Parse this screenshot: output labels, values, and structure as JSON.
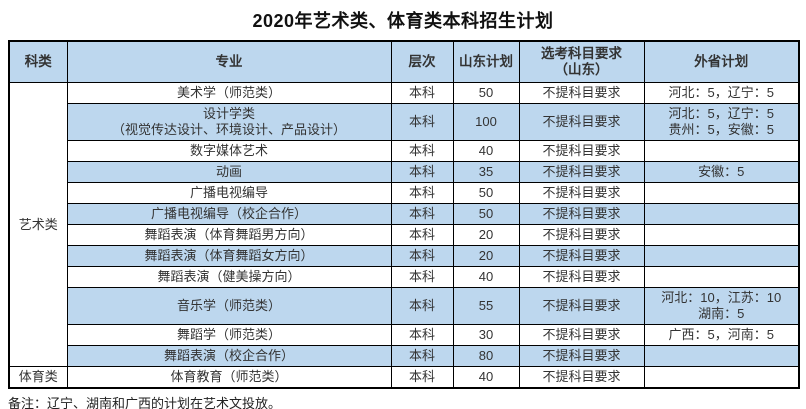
{
  "title": "2020年艺术类、体育类本科招生计划",
  "note": "备注：辽宁、湖南和广西的计划在艺术文投放。",
  "colors": {
    "header_bg": "#BDD7EE",
    "stripe_bg": "#BDD7EE",
    "border": "#000000",
    "text": "#333333"
  },
  "headers": {
    "category": "科类",
    "major": "专业",
    "level": "层次",
    "shandong_plan": "山东计划",
    "subject_req": "选考科目要求\n（山东）",
    "other_province_plan": "外省计划"
  },
  "categories": [
    {
      "label": "艺术类",
      "rowspan": 12
    },
    {
      "label": "体育类",
      "rowspan": 1
    }
  ],
  "rows": [
    {
      "major": "美术学（师范类）",
      "level": "本科",
      "shandong": "50",
      "subject": "不提科目要求",
      "other": "河北：5，辽宁：5"
    },
    {
      "major": "设计学类\n（视觉传达设计、环境设计、产品设计）",
      "level": "本科",
      "shandong": "100",
      "subject": "不提科目要求",
      "other": "河北：5，辽宁：5\n贵州：5，安徽：5"
    },
    {
      "major": "数字媒体艺术",
      "level": "本科",
      "shandong": "40",
      "subject": "不提科目要求",
      "other": ""
    },
    {
      "major": "动画",
      "level": "本科",
      "shandong": "35",
      "subject": "不提科目要求",
      "other": "安徽：5"
    },
    {
      "major": "广播电视编导",
      "level": "本科",
      "shandong": "50",
      "subject": "不提科目要求",
      "other": ""
    },
    {
      "major": "广播电视编导（校企合作）",
      "level": "本科",
      "shandong": "50",
      "subject": "不提科目要求",
      "other": ""
    },
    {
      "major": "舞蹈表演（体育舞蹈男方向）",
      "level": "本科",
      "shandong": "20",
      "subject": "不提科目要求",
      "other": ""
    },
    {
      "major": "舞蹈表演（体育舞蹈女方向）",
      "level": "本科",
      "shandong": "20",
      "subject": "不提科目要求",
      "other": ""
    },
    {
      "major": "舞蹈表演（健美操方向）",
      "level": "本科",
      "shandong": "40",
      "subject": "不提科目要求",
      "other": ""
    },
    {
      "major": "音乐学（师范类）",
      "level": "本科",
      "shandong": "55",
      "subject": "不提科目要求",
      "other": "河北：10，江苏：10\n湖南：5"
    },
    {
      "major": "舞蹈学（师范类）",
      "level": "本科",
      "shandong": "30",
      "subject": "不提科目要求",
      "other": "广西：5，河南：5"
    },
    {
      "major": "舞蹈表演（校企合作）",
      "level": "本科",
      "shandong": "80",
      "subject": "不提科目要求",
      "other": ""
    },
    {
      "major": "体育教育（师范类）",
      "level": "本科",
      "shandong": "40",
      "subject": "不提科目要求",
      "other": ""
    }
  ]
}
